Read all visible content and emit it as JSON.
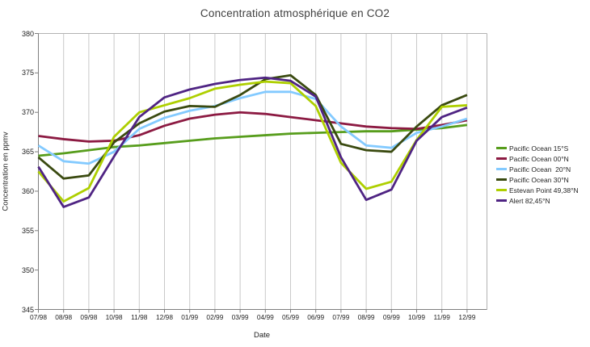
{
  "chart_data": {
    "type": "line",
    "title": "Concentration atmosphérique en CO2",
    "xlabel": "Date",
    "ylabel": "Concentration en ppmv",
    "ylim": [
      345,
      380
    ],
    "yticks": [
      345,
      350,
      355,
      360,
      365,
      370,
      375,
      380
    ],
    "grid": "vertical-only",
    "legend_position": "right",
    "categories": [
      "07/98",
      "08/98",
      "09/98",
      "10/98",
      "11/98",
      "12/98",
      "01/99",
      "02/99",
      "03/99",
      "04/99",
      "05/99",
      "06/99",
      "07/99",
      "08/99",
      "09/99",
      "10/99",
      "11/99",
      "12/99"
    ],
    "series": [
      {
        "name": "Pacific Ocean 15°S",
        "color": "#579d1c",
        "values": [
          364.5,
          364.8,
          365.2,
          365.6,
          365.8,
          366.1,
          366.4,
          366.7,
          366.9,
          367.1,
          367.3,
          367.4,
          367.5,
          367.6,
          367.6,
          367.8,
          368.0,
          368.4
        ]
      },
      {
        "name": "Pacific Ocean 00°N",
        "color": "#8c1a42",
        "values": [
          367.0,
          366.6,
          366.3,
          366.4,
          367.1,
          368.3,
          369.2,
          369.7,
          370.0,
          369.8,
          369.4,
          369.0,
          368.6,
          368.2,
          368.0,
          367.9,
          368.4,
          369.0
        ]
      },
      {
        "name": "Pacific Ocean  20°N",
        "color": "#83caff",
        "values": [
          365.8,
          363.8,
          363.5,
          365.0,
          367.9,
          369.3,
          370.2,
          370.8,
          371.8,
          372.6,
          372.6,
          371.7,
          368.2,
          365.8,
          365.5,
          367.4,
          368.2,
          369.2
        ]
      },
      {
        "name": "Pacific Ocean 30°N",
        "color": "#3a4a10",
        "values": [
          364.3,
          361.6,
          362.0,
          366.2,
          368.6,
          370.1,
          370.8,
          370.7,
          372.2,
          374.2,
          374.7,
          372.2,
          366.0,
          365.2,
          365.0,
          368.2,
          370.9,
          372.2
        ]
      },
      {
        "name": "Estevan Point 49,38°N",
        "color": "#aecf00",
        "values": [
          362.5,
          358.7,
          360.4,
          366.9,
          370.0,
          370.9,
          371.8,
          373.0,
          373.5,
          373.9,
          373.7,
          370.8,
          363.6,
          360.3,
          361.2,
          366.5,
          370.7,
          370.9
        ]
      },
      {
        "name": "Alert 82,45°N",
        "color": "#4f2483",
        "values": [
          363.1,
          358.0,
          359.2,
          364.4,
          369.4,
          371.9,
          372.9,
          373.6,
          374.1,
          374.4,
          374.0,
          372.0,
          364.3,
          358.9,
          360.2,
          366.4,
          369.4,
          370.6
        ]
      }
    ]
  },
  "colors": {
    "background": "#ffffff",
    "gridline": "#c9c9c9",
    "plot_border": "#b3b3b3",
    "axis": "#7f7f7f",
    "title_text": "#3f3f3f",
    "tick_text": "#1f1f1f"
  }
}
